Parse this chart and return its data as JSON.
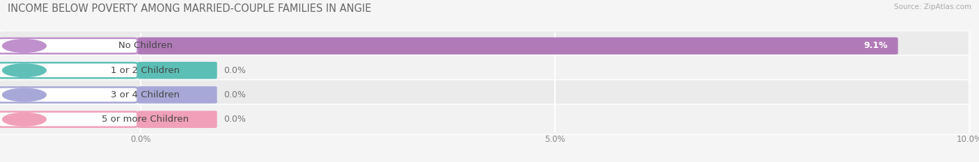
{
  "title": "INCOME BELOW POVERTY AMONG MARRIED-COUPLE FAMILIES IN ANGIE",
  "source": "Source: ZipAtlas.com",
  "categories": [
    "No Children",
    "1 or 2 Children",
    "3 or 4 Children",
    "5 or more Children"
  ],
  "values": [
    9.1,
    0.0,
    0.0,
    0.0
  ],
  "bar_colors": [
    "#b07ab8",
    "#5bbfb5",
    "#a8a8d8",
    "#f0a0b8"
  ],
  "bar_bg_colors": [
    "#e8e8ee",
    "#eeeef5",
    "#eeeef5",
    "#eeeef5"
  ],
  "label_circle_colors": [
    "#c090cc",
    "#60c0b8",
    "#a8a8d8",
    "#f0a0b8"
  ],
  "row_bg_colors": [
    "#ebebeb",
    "#f2f2f2",
    "#ebebeb",
    "#f2f2f2"
  ],
  "xlim_max": 10.0,
  "xticks": [
    0.0,
    5.0,
    10.0
  ],
  "xtick_labels": [
    "0.0%",
    "5.0%",
    "10.0%"
  ],
  "bar_height": 0.62,
  "background_color": "#f5f5f5",
  "title_fontsize": 10.5,
  "label_fontsize": 9.5,
  "value_fontsize": 9
}
